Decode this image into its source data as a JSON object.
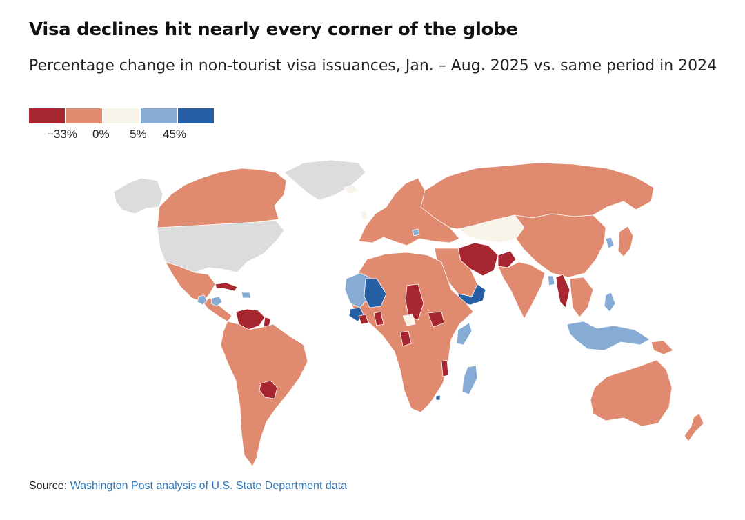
{
  "header": {
    "title": "Visa declines hit nearly every corner of the globe",
    "subtitle": "Percentage change in non-tourist visa issuances, Jan. – Aug. 2025 vs. same period in 2024"
  },
  "legend": {
    "colors": [
      "#a8262f",
      "#e08b6f",
      "#f8f4ea",
      "#86acd6",
      "#275fa5"
    ],
    "ticks": [
      "−33%",
      "0%",
      "5%",
      "45%"
    ],
    "no_data_color": "#dcdcdc"
  },
  "source": {
    "label": "Source:",
    "link_text": "Washington Post analysis of U.S. State Department data"
  }
}
